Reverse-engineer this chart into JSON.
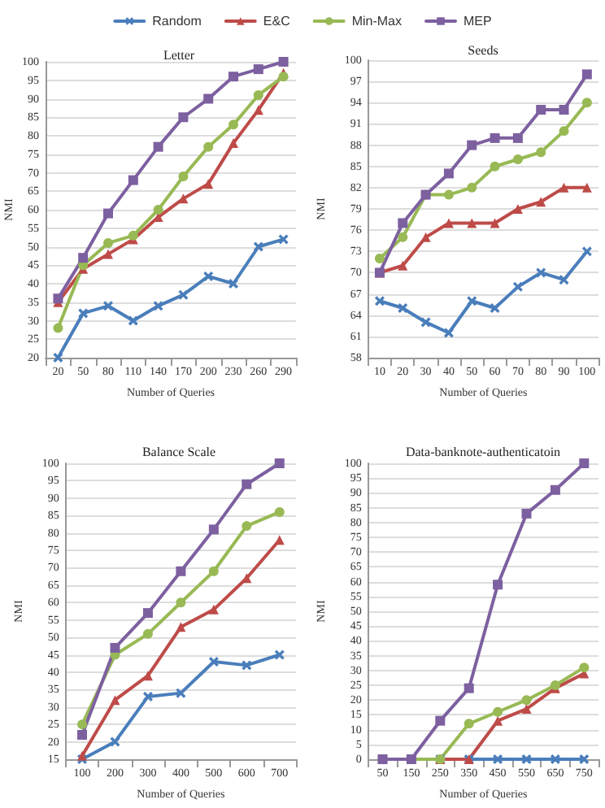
{
  "chart_data": [
    {
      "type": "line",
      "title": "Letter",
      "xlabel": "Number of Queries",
      "ylabel": "NMI",
      "categories": [
        "20",
        "50",
        "80",
        "110",
        "140",
        "170",
        "200",
        "230",
        "260",
        "290"
      ],
      "ylim": [
        20,
        100
      ],
      "yticks": [
        20,
        25,
        30,
        35,
        40,
        45,
        50,
        55,
        60,
        65,
        70,
        75,
        80,
        85,
        90,
        95,
        100
      ],
      "grid": "y",
      "legend": "top",
      "series": [
        {
          "name": "Random",
          "color": "#4a7ebb",
          "marker": "cross",
          "values": [
            20,
            32,
            34,
            30,
            34,
            37,
            42,
            40,
            50,
            52
          ]
        },
        {
          "name": "E&C",
          "color": "#be4b48",
          "marker": "triangle",
          "values": [
            35,
            44,
            48,
            52,
            58,
            63,
            67,
            78,
            87,
            97
          ]
        },
        {
          "name": "Min-Max",
          "color": "#98b954",
          "marker": "circle",
          "values": [
            28,
            45,
            51,
            53,
            60,
            69,
            77,
            83,
            91,
            96
          ]
        },
        {
          "name": "MEP",
          "color": "#7d60a0",
          "marker": "square",
          "values": [
            36,
            47,
            59,
            68,
            77,
            85,
            90,
            96,
            98,
            100
          ]
        }
      ]
    },
    {
      "type": "line",
      "title": "Seeds",
      "xlabel": "Number of Queries",
      "ylabel": "NMI",
      "categories": [
        "10",
        "20",
        "30",
        "40",
        "50",
        "60",
        "70",
        "80",
        "90",
        "100"
      ],
      "ylim": [
        58,
        100
      ],
      "yticks": [
        58,
        61,
        64,
        67,
        70,
        73,
        76,
        79,
        82,
        85,
        88,
        91,
        94,
        97,
        100
      ],
      "grid": "y",
      "series": [
        {
          "color": "#4a7ebb",
          "marker": "cross",
          "values": [
            66,
            65,
            63,
            61.5,
            66,
            65,
            68,
            70,
            69,
            73
          ]
        },
        {
          "color": "#be4b48",
          "marker": "triangle",
          "values": [
            70,
            71,
            75,
            77,
            77,
            77,
            79,
            80,
            82,
            82
          ]
        },
        {
          "color": "#98b954",
          "marker": "circle",
          "values": [
            72,
            75,
            81,
            81,
            82,
            85,
            86,
            87,
            90,
            94
          ]
        },
        {
          "color": "#7d60a0",
          "marker": "square",
          "values": [
            70,
            77,
            81,
            84,
            88,
            89,
            89,
            93,
            93,
            98
          ]
        }
      ]
    },
    {
      "type": "line",
      "title": "Balance Scale",
      "xlabel": "Number of Queries",
      "ylabel": "NMI",
      "categories": [
        "100",
        "200",
        "300",
        "400",
        "500",
        "600",
        "700"
      ],
      "ylim": [
        15,
        100
      ],
      "yticks": [
        15,
        20,
        25,
        30,
        35,
        40,
        45,
        50,
        55,
        60,
        65,
        70,
        75,
        80,
        85,
        90,
        95,
        100
      ],
      "grid": "y",
      "series": [
        {
          "color": "#4a7ebb",
          "marker": "cross",
          "values": [
            15,
            20,
            33,
            34,
            43,
            42,
            45
          ]
        },
        {
          "color": "#be4b48",
          "marker": "triangle",
          "values": [
            16,
            32,
            39,
            53,
            58,
            67,
            78
          ]
        },
        {
          "color": "#98b954",
          "marker": "circle",
          "values": [
            25,
            45,
            51,
            60,
            69,
            82,
            86
          ]
        },
        {
          "color": "#7d60a0",
          "marker": "square",
          "values": [
            22,
            47,
            57,
            69,
            81,
            94,
            100
          ]
        }
      ]
    },
    {
      "type": "line",
      "title": "Data-banknote-authenticatoin",
      "xlabel": "Number of Queries",
      "ylabel": "NMI",
      "categories": [
        "50",
        "150",
        "250",
        "350",
        "450",
        "550",
        "650",
        "750"
      ],
      "ylim": [
        0,
        100
      ],
      "yticks": [
        0,
        5,
        10,
        15,
        20,
        25,
        30,
        35,
        40,
        45,
        50,
        55,
        60,
        65,
        70,
        75,
        80,
        85,
        90,
        95,
        100
      ],
      "grid": "y",
      "series": [
        {
          "color": "#4a7ebb",
          "marker": "cross",
          "values": [
            0,
            0,
            0,
            0,
            0,
            0,
            0,
            0
          ]
        },
        {
          "color": "#be4b48",
          "marker": "triangle",
          "values": [
            0,
            0,
            0,
            0,
            13,
            17,
            24,
            29
          ]
        },
        {
          "color": "#98b954",
          "marker": "circle",
          "values": [
            0,
            0,
            0,
            12,
            16,
            20,
            25,
            31
          ]
        },
        {
          "color": "#7d60a0",
          "marker": "square",
          "values": [
            0,
            0,
            13,
            24,
            59,
            83,
            91,
            100
          ]
        }
      ]
    }
  ]
}
